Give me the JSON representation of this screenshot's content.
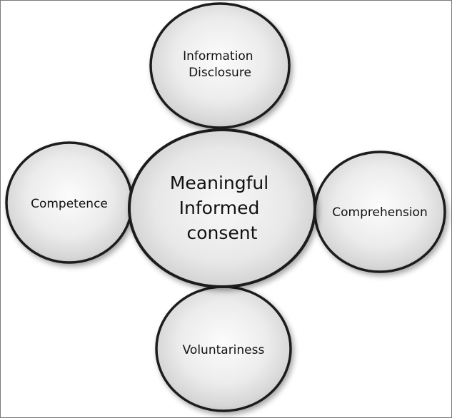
{
  "center": {
    "lines": [
      "Meaningful",
      "Informed",
      "consent"
    ]
  },
  "nodes": {
    "top": {
      "lines": [
        "Information",
        "Disclosure"
      ]
    },
    "left": {
      "lines": [
        "Competence"
      ]
    },
    "right": {
      "lines": [
        "Comprehension"
      ]
    },
    "bottom": {
      "lines": [
        "Voluntariness"
      ]
    }
  },
  "colors": {
    "circle_fill_light": "#fbfbfb",
    "circle_fill_dark": "#cfcfcf",
    "circle_stroke": "#1e1e1e",
    "text": "#111111"
  }
}
